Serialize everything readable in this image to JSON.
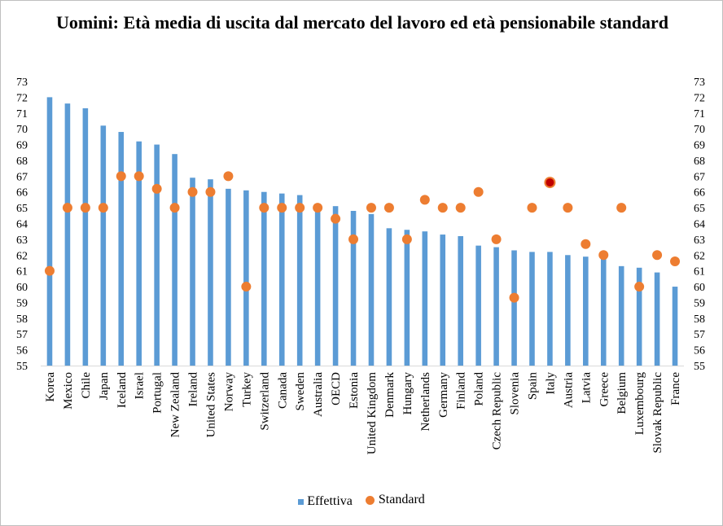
{
  "chart_data": {
    "type": "bar",
    "title": "Uomini: Età media di uscita dal mercato del lavoro ed età pensionabile standard",
    "xlabel": "",
    "ylabel": "",
    "ylim": [
      55,
      73
    ],
    "yticks": [
      55,
      56,
      57,
      58,
      59,
      60,
      61,
      62,
      63,
      64,
      65,
      66,
      67,
      68,
      69,
      70,
      71,
      72,
      73
    ],
    "grid": false,
    "legend_position": "bottom",
    "colors": {
      "bar": "#5b9bd5",
      "dot": "#ed7d31",
      "dot_highlight": "#c00000"
    },
    "categories": [
      "Korea",
      "Mexico",
      "Chile",
      "Japan",
      "Iceland",
      "Israel",
      "Portugal",
      "New Zealand",
      "Ireland",
      "United States",
      "Norway",
      "Turkey",
      "Switzerland",
      "Canada",
      "Sweden",
      "Australia",
      "OECD",
      "Estonia",
      "United Kingdom",
      "Denmark",
      "Hungary",
      "Netherlands",
      "Germany",
      "Finland",
      "Poland",
      "Czech Republic",
      "Slovenia",
      "Spain",
      "Italy",
      "Austria",
      "Latvia",
      "Greece",
      "Belgium",
      "Luxembourg",
      "Slovak Republic",
      "France"
    ],
    "series": [
      {
        "name": "Effettiva",
        "kind": "bar",
        "values": [
          72.0,
          71.6,
          71.3,
          70.2,
          69.8,
          69.2,
          69.0,
          68.4,
          66.9,
          66.8,
          66.2,
          66.1,
          66.0,
          65.9,
          65.8,
          65.1,
          65.1,
          64.8,
          64.6,
          63.7,
          63.6,
          63.5,
          63.3,
          63.2,
          62.6,
          62.5,
          62.3,
          62.2,
          62.2,
          62.0,
          61.9,
          61.9,
          61.3,
          61.2,
          60.9,
          60.0
        ]
      },
      {
        "name": "Standard",
        "kind": "dot",
        "values": [
          61,
          65,
          65,
          65,
          67,
          67,
          66.2,
          65,
          66,
          66,
          67,
          60,
          65,
          65,
          65,
          65,
          64.3,
          63,
          65,
          65,
          63,
          65.5,
          65,
          65,
          66,
          63,
          59.3,
          65,
          66.6,
          65,
          62.7,
          62,
          65,
          60,
          62,
          61.6
        ]
      }
    ],
    "highlight_category": "Italy"
  }
}
